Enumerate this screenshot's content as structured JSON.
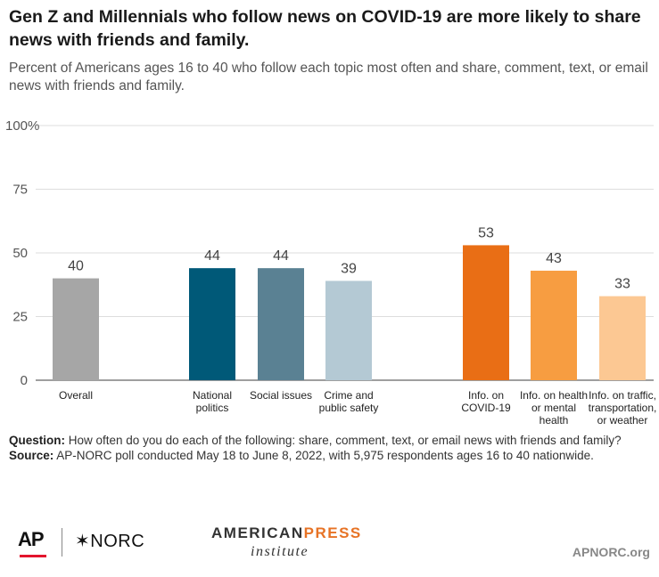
{
  "title": "Gen Z and Millennials who follow news on COVID-19 are more likely to share news with friends and family.",
  "subtitle": "Percent of Americans ages 16 to 40 who follow each topic most often and share, comment, text, or email news with friends and family.",
  "chart_data": {
    "type": "bar",
    "ylim": [
      0,
      100
    ],
    "yticks": [
      0,
      25,
      50,
      75,
      100
    ],
    "ytick_labels": [
      "0",
      "25",
      "50",
      "75",
      "100%"
    ],
    "grid": true,
    "categories": [
      [
        "Overall"
      ],
      [
        "National",
        "politics"
      ],
      [
        "Social issues"
      ],
      [
        "Crime and",
        "public safety"
      ],
      [
        "Info. on",
        "COVID-19"
      ],
      [
        "Info. on health",
        "or mental",
        "health"
      ],
      [
        "Info. on traffic,",
        "transportation,",
        "or weather"
      ]
    ],
    "values": [
      40,
      44,
      44,
      39,
      53,
      43,
      33
    ],
    "colors": [
      "#a6a6a6",
      "#005978",
      "#5a8193",
      "#b4c9d4",
      "#e96e15",
      "#f79d41",
      "#fcc893"
    ]
  },
  "notes": {
    "question_label": "Question:",
    "question_text": "How often do you do each of the following: share, comment, text, or email news with friends and family?",
    "source_label": "Source:",
    "source_text": "AP-NORC poll conducted May 18 to June 8, 2022, with 5,975 respondents ages 16 to 40 nationwide."
  },
  "footer": {
    "ap_logo": "AP",
    "norc_logo": "✶NORC",
    "api_word1": "AMERICAN",
    "api_word2": "PRESS",
    "api_word3": "institute",
    "site": "APNORC.org",
    "accent_red": "#e3142d",
    "accent_orange": "#e77325"
  }
}
